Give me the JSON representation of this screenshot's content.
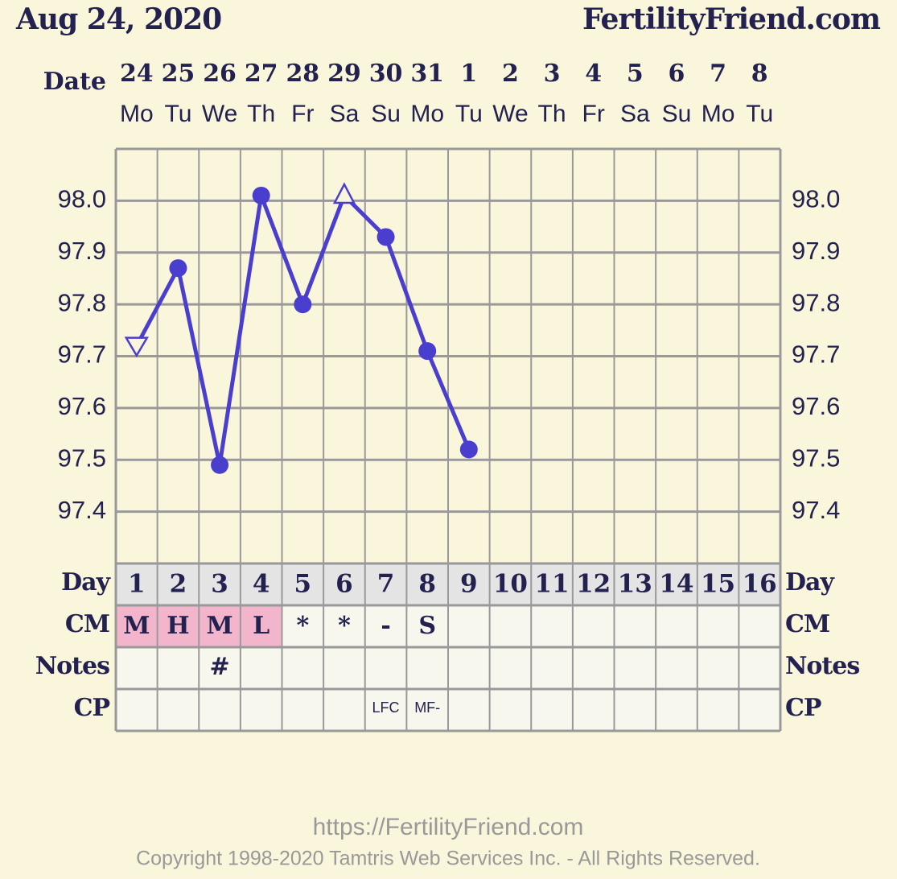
{
  "chart_data": {
    "type": "line",
    "title": "Aug 24, 2020",
    "site": "FertilityFriend.com",
    "row_labels": {
      "date": "Date",
      "day": "Day",
      "cm": "CM",
      "notes": "Notes",
      "cp": "CP"
    },
    "dates": [
      "24",
      "25",
      "26",
      "27",
      "28",
      "29",
      "30",
      "31",
      "1",
      "2",
      "3",
      "4",
      "5",
      "6",
      "7",
      "8"
    ],
    "weekdays": [
      "Mo",
      "Tu",
      "We",
      "Th",
      "Fr",
      "Sa",
      "Su",
      "Mo",
      "Tu",
      "We",
      "Th",
      "Fr",
      "Sa",
      "Su",
      "Mo",
      "Tu"
    ],
    "categories": [
      "1",
      "2",
      "3",
      "4",
      "5",
      "6",
      "7",
      "8",
      "9",
      "10",
      "11",
      "12",
      "13",
      "14",
      "15",
      "16"
    ],
    "series": [
      {
        "color": "#4a3ecf",
        "values": [
          97.72,
          97.87,
          97.49,
          98.01,
          97.8,
          98.01,
          97.93,
          97.71,
          97.52,
          null,
          null,
          null,
          null,
          null,
          null,
          null
        ],
        "markers": [
          "triangle-down",
          "circle",
          "circle",
          "circle",
          "circle",
          "triangle-up",
          "circle",
          "circle",
          "circle",
          null,
          null,
          null,
          null,
          null,
          null,
          null
        ]
      }
    ],
    "ylim": [
      97.3,
      98.1
    ],
    "yticks": [
      97.4,
      97.5,
      97.6,
      97.7,
      97.8,
      97.9,
      {
        "value": 98,
        "label": "98.0"
      }
    ],
    "grid": true,
    "cm": [
      "M",
      "H",
      "M",
      "L",
      "*",
      "*",
      "-",
      "S",
      null,
      null,
      null,
      null,
      null,
      null,
      null,
      null
    ],
    "cm_colors": [
      "#f3b5cb",
      "#f3b5cb",
      "#f3b5cb",
      "#f3b5cb",
      null,
      null,
      null,
      null,
      null,
      null,
      null,
      null,
      null,
      null,
      null,
      null
    ],
    "notes": [
      null,
      null,
      "#",
      null,
      null,
      null,
      null,
      null,
      null,
      null,
      null,
      null,
      null,
      null,
      null,
      null
    ],
    "cp": [
      null,
      null,
      null,
      null,
      null,
      null,
      "LFC",
      "MF-",
      null,
      null,
      null,
      null,
      null,
      null,
      null,
      null
    ],
    "footer_url": "https://FertilityFriend.com",
    "copyright": "Copyright 1998-2020 Tamtris Web Services Inc. - All Rights Reserved."
  }
}
